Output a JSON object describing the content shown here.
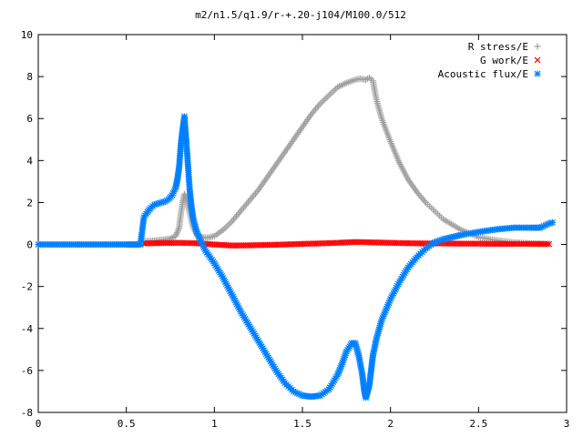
{
  "chart_data": {
    "type": "scatter",
    "title": "m2/n1.5/q1.9/r-+.20-j104/M100.0/512",
    "xlabel": "",
    "ylabel": "",
    "xlim": [
      0,
      3
    ],
    "ylim": [
      -8,
      10
    ],
    "x_ticks": [
      0,
      0.5,
      1,
      1.5,
      2,
      2.5,
      3
    ],
    "x_tick_labels": [
      "0",
      "0.5",
      "1",
      "1.5",
      "2",
      "2.5",
      "3"
    ],
    "y_ticks": [
      -8,
      -6,
      -4,
      -2,
      0,
      2,
      4,
      6,
      8,
      10
    ],
    "y_tick_labels": [
      "-8",
      "-6",
      "-4",
      "-2",
      "0",
      "2",
      "4",
      "6",
      "8",
      "10"
    ],
    "grid": false,
    "legend_position": "top-right",
    "series": [
      {
        "name": "R stress/E",
        "marker": "+",
        "color": "#a0a0a0",
        "x": [
          0.6,
          0.65,
          0.7,
          0.75,
          0.78,
          0.8,
          0.81,
          0.82,
          0.83,
          0.84,
          0.86,
          0.88,
          0.9,
          0.93,
          0.96,
          1.0,
          1.05,
          1.1,
          1.15,
          1.2,
          1.25,
          1.3,
          1.35,
          1.4,
          1.45,
          1.5,
          1.55,
          1.6,
          1.65,
          1.7,
          1.75,
          1.8,
          1.83,
          1.86,
          1.88,
          1.9,
          1.92,
          1.95,
          2.0,
          2.05,
          2.1,
          2.15,
          2.2,
          2.3,
          2.4,
          2.5,
          2.6,
          2.7,
          2.8,
          2.9
        ],
        "y": [
          0.15,
          0.18,
          0.22,
          0.28,
          0.4,
          0.8,
          1.5,
          2.0,
          2.4,
          2.2,
          1.5,
          0.8,
          0.45,
          0.35,
          0.32,
          0.4,
          0.7,
          1.1,
          1.6,
          2.1,
          2.6,
          3.2,
          3.8,
          4.4,
          5.0,
          5.6,
          6.2,
          6.7,
          7.1,
          7.5,
          7.7,
          7.85,
          7.9,
          7.85,
          7.95,
          7.8,
          6.9,
          6.0,
          4.9,
          3.9,
          3.1,
          2.5,
          2.0,
          1.2,
          0.7,
          0.35,
          0.2,
          0.1,
          0.05,
          0.03
        ]
      },
      {
        "name": "G work/E",
        "marker": "x",
        "color": "#ff0000",
        "x": [
          0.6,
          0.7,
          0.8,
          0.9,
          1.0,
          1.1,
          1.2,
          1.3,
          1.4,
          1.5,
          1.6,
          1.7,
          1.8,
          1.9,
          2.0,
          2.1,
          2.2,
          2.3,
          2.4,
          2.5,
          2.6,
          2.7,
          2.8,
          2.9
        ],
        "y": [
          0.05,
          0.07,
          0.08,
          0.06,
          0.0,
          -0.05,
          -0.04,
          -0.02,
          0.0,
          0.03,
          0.05,
          0.08,
          0.12,
          0.1,
          0.08,
          0.06,
          0.05,
          0.05,
          0.04,
          0.04,
          0.03,
          0.03,
          0.03,
          0.02
        ]
      },
      {
        "name": "Acoustic flux/E",
        "marker": "*",
        "color": "#0080ff",
        "x": [
          0.0,
          0.1,
          0.2,
          0.3,
          0.4,
          0.5,
          0.58,
          0.6,
          0.62,
          0.64,
          0.66,
          0.68,
          0.7,
          0.72,
          0.74,
          0.76,
          0.78,
          0.79,
          0.8,
          0.81,
          0.82,
          0.83,
          0.84,
          0.85,
          0.86,
          0.87,
          0.88,
          0.9,
          0.92,
          0.95,
          1.0,
          1.05,
          1.1,
          1.15,
          1.2,
          1.25,
          1.3,
          1.35,
          1.4,
          1.45,
          1.5,
          1.55,
          1.6,
          1.65,
          1.7,
          1.72,
          1.75,
          1.78,
          1.8,
          1.82,
          1.84,
          1.85,
          1.86,
          1.87,
          1.88,
          1.89,
          1.9,
          1.92,
          1.95,
          2.0,
          2.05,
          2.1,
          2.15,
          2.2,
          2.25,
          2.3,
          2.35,
          2.4,
          2.5,
          2.6,
          2.7,
          2.8,
          2.85,
          2.9,
          2.92
        ],
        "y": [
          0.0,
          0.0,
          0.0,
          0.0,
          0.0,
          0.0,
          0.0,
          1.3,
          1.55,
          1.75,
          1.9,
          1.95,
          2.0,
          2.05,
          2.15,
          2.35,
          2.7,
          3.1,
          3.7,
          4.8,
          5.5,
          6.1,
          5.0,
          3.8,
          2.6,
          1.8,
          1.2,
          0.6,
          0.2,
          -0.3,
          -0.9,
          -1.6,
          -2.4,
          -3.2,
          -3.9,
          -4.6,
          -5.3,
          -6.0,
          -6.6,
          -7.0,
          -7.2,
          -7.25,
          -7.2,
          -6.9,
          -6.2,
          -5.8,
          -5.1,
          -4.7,
          -4.7,
          -5.3,
          -6.2,
          -6.9,
          -7.3,
          -7.0,
          -6.7,
          -6.0,
          -5.3,
          -4.5,
          -3.6,
          -2.6,
          -1.8,
          -1.1,
          -0.6,
          -0.2,
          0.1,
          0.25,
          0.35,
          0.45,
          0.6,
          0.72,
          0.8,
          0.8,
          0.8,
          1.0,
          1.05
        ]
      }
    ]
  }
}
